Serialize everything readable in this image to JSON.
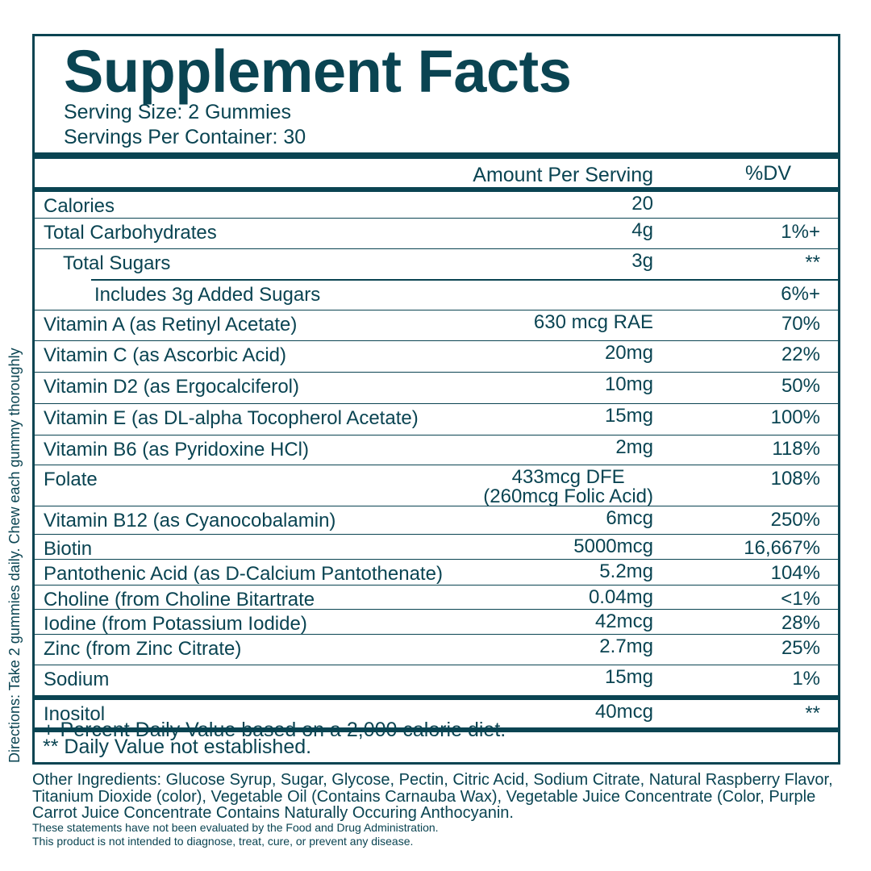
{
  "title": "Supplement Facts",
  "serving_size": "Serving Size: 2 Gummies",
  "servings_per_container": "Servings Per Container: 30",
  "header": {
    "amount": "Amount Per Serving",
    "dv": "%DV"
  },
  "rows": [
    {
      "name": "Calories",
      "amount": "20",
      "dv": ""
    },
    {
      "name": "Total Carbohydrates",
      "amount": "4g",
      "dv": "1%+"
    },
    {
      "name": "Total Sugars",
      "amount": "3g",
      "dv": "**"
    },
    {
      "name": "Includes 3g Added Sugars",
      "amount": "",
      "dv": "6%+"
    },
    {
      "name": "Vitamin A (as Retinyl Acetate)",
      "amount": "630 mcg RAE",
      "dv": "70%"
    },
    {
      "name": "Vitamin C (as Ascorbic Acid)",
      "amount": "20mg",
      "dv": "22%"
    },
    {
      "name": "Vitamin D2 (as Ergocalciferol)",
      "amount": "10mg",
      "dv": "50%"
    },
    {
      "name": "Vitamin E (as DL-alpha Tocopherol Acetate)",
      "amount": "15mg",
      "dv": "100%"
    },
    {
      "name": "Vitamin B6 (as Pyridoxine HCl)",
      "amount": "2mg",
      "dv": "118%"
    },
    {
      "name": "Folate",
      "amount": "433mcg DFE",
      "amount2": "(260mcg Folic Acid)",
      "dv": "108%"
    },
    {
      "name": "Vitamin B12 (as Cyanocobalamin)",
      "amount": "6mcg",
      "dv": "250%"
    },
    {
      "name": "Biotin",
      "amount": "5000mcg",
      "dv": "16,667%"
    },
    {
      "name": "Pantothenic Acid (as D-Calcium Pantothenate)",
      "amount": "5.2mg",
      "dv": "104%"
    },
    {
      "name": "Choline (from Choline Bitartrate",
      "amount": "0.04mg",
      "dv": "<1%"
    },
    {
      "name": "Iodine (from Potassium Iodide)",
      "amount": "42mcg",
      "dv": "28%"
    },
    {
      "name": "Zinc (from Zinc Citrate)",
      "amount": "2.7mg",
      "dv": "25%"
    },
    {
      "name": "Sodium",
      "amount": "15mg",
      "dv": "1%"
    },
    {
      "name": "Inositol",
      "amount": "40mcg",
      "dv": "**"
    }
  ],
  "footnotes": [
    "+ Percent Daily Value based on a 2,000 calorie diet.",
    "** Daily Value not established."
  ],
  "directions": "Directions: Take 2 gummies daily. Chew each gummy thoroughly",
  "other_ingredients": "Other Ingredients: Glucose Syrup, Sugar, Glycose, Pectin, Citric Acid, Sodium Citrate, Natural Raspberry Flavor, Titanium Dioxide (color), Vegetable Oil (Contains Carnauba Wax), Vegetable Juice Concentrate (Color, Purple Carrot Juice Concentrate Contains Naturally Occuring Anthocyanin.",
  "disclaimer": [
    "These statements have not been evaluated by the Food and Drug Administration.",
    "This product is not intended to diagnose, treat, cure, or prevent any disease."
  ],
  "colors": {
    "primary": "#0a4452"
  }
}
